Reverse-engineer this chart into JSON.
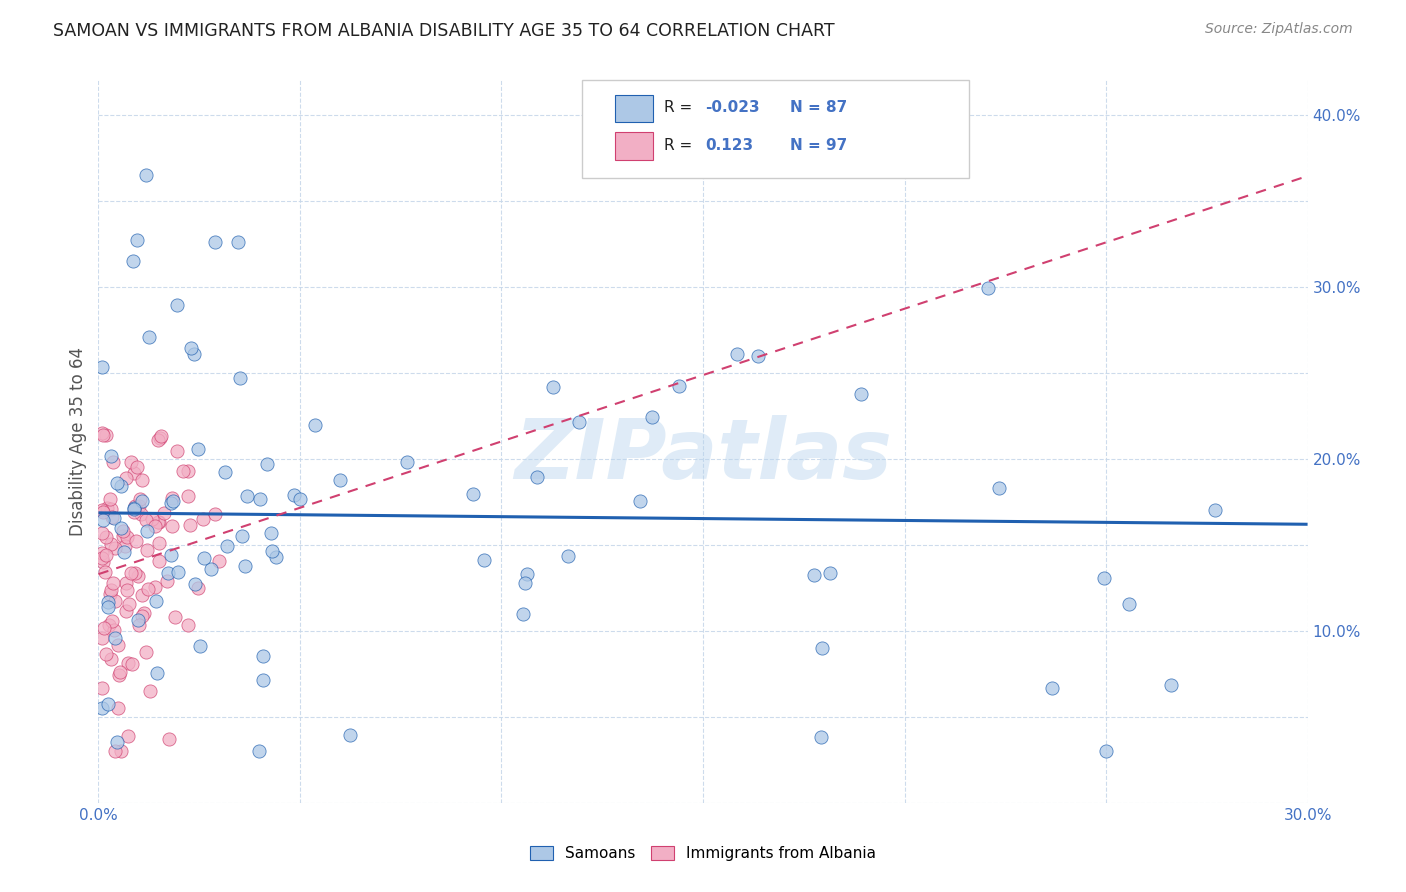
{
  "title": "SAMOAN VS IMMIGRANTS FROM ALBANIA DISABILITY AGE 35 TO 64 CORRELATION CHART",
  "source": "Source: ZipAtlas.com",
  "ylabel": "Disability Age 35 to 64",
  "xlim": [
    0.0,
    0.3
  ],
  "ylim": [
    0.0,
    0.42
  ],
  "xtick_positions": [
    0.0,
    0.05,
    0.1,
    0.15,
    0.2,
    0.25,
    0.3
  ],
  "ytick_positions": [
    0.0,
    0.05,
    0.1,
    0.15,
    0.2,
    0.25,
    0.3,
    0.35,
    0.4
  ],
  "samoans_R": -0.023,
  "samoans_N": 87,
  "albania_R": 0.123,
  "albania_N": 97,
  "legend_labels": [
    "Samoans",
    "Immigrants from Albania"
  ],
  "samoans_color": "#adc8e6",
  "albania_color": "#f2afc5",
  "samoans_line_color": "#2060b0",
  "albania_line_color": "#d04070",
  "watermark": "ZIPatlas",
  "background_color": "#ffffff",
  "grid_color": "#c8d8ea",
  "tick_label_color": "#4472c4",
  "ylabel_color": "#555555",
  "title_color": "#222222",
  "source_color": "#888888"
}
